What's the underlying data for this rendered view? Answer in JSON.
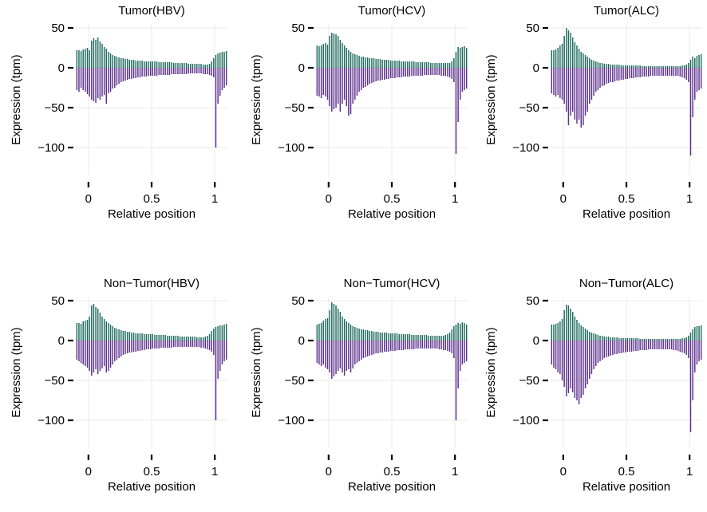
{
  "colors": {
    "positive": "#1e6b5e",
    "negative": "#5c2f8c",
    "grid": "#ebebeb"
  },
  "chart_data": [
    {
      "type": "bar",
      "title": "Tumor(HBV)",
      "xlabel": "Relative position",
      "ylabel": "Expression (tpm)",
      "xticks": [
        0,
        0.5,
        1
      ],
      "xtick_labels": [
        "0",
        "0.5",
        "1"
      ],
      "yticks": [
        50,
        0,
        -50,
        -100
      ],
      "ytick_labels": [
        "50",
        "0",
        "−50",
        "−100"
      ],
      "xlim": [
        -0.1,
        1.1
      ],
      "ylim": [
        -135,
        55
      ],
      "grid": true,
      "x_range": [
        -0.1,
        1.1
      ],
      "series": [
        {
          "values": [
            22,
            22,
            21,
            23,
            24,
            25,
            22,
            34,
            37,
            35,
            38,
            33,
            30,
            26,
            24,
            20,
            18,
            16,
            15,
            14,
            13,
            12,
            12,
            11,
            11,
            10,
            10,
            10,
            9,
            9,
            9,
            9,
            8,
            8,
            8,
            8,
            8,
            8,
            8,
            7,
            7,
            7,
            7,
            7,
            7,
            7,
            6,
            6,
            6,
            6,
            6,
            6,
            6,
            5,
            5,
            5,
            5,
            5,
            5,
            5,
            4,
            4,
            4,
            5,
            8,
            12,
            16,
            18,
            19,
            20,
            20,
            21
          ]
        },
        {
          "values": [
            -28,
            -30,
            -25,
            -28,
            -30,
            -33,
            -36,
            -40,
            -42,
            -44,
            -38,
            -40,
            -36,
            -34,
            -45,
            -32,
            -30,
            -26,
            -25,
            -22,
            -20,
            -18,
            -17,
            -16,
            -15,
            -14,
            -14,
            -13,
            -13,
            -12,
            -12,
            -11,
            -11,
            -11,
            -10,
            -10,
            -10,
            -10,
            -10,
            -9,
            -9,
            -9,
            -9,
            -9,
            -9,
            -8,
            -8,
            -8,
            -8,
            -8,
            -8,
            -8,
            -8,
            -7,
            -7,
            -7,
            -7,
            -7,
            -7,
            -7,
            -8,
            -8,
            -8,
            -9,
            -10,
            -12,
            -100,
            -45,
            -35,
            -28,
            -25,
            -22
          ]
        }
      ]
    },
    {
      "type": "bar",
      "title": "Tumor(HCV)",
      "xlabel": "Relative position",
      "ylabel": "Expression (tpm)",
      "xticks": [
        0,
        0.5,
        1
      ],
      "xtick_labels": [
        "0",
        "0.5",
        "1"
      ],
      "yticks": [
        50,
        0,
        -50,
        -100
      ],
      "ytick_labels": [
        "50",
        "0",
        "−50",
        "−100"
      ],
      "xlim": [
        -0.1,
        1.1
      ],
      "ylim": [
        -135,
        55
      ],
      "grid": true,
      "x_range": [
        -0.1,
        1.1
      ],
      "series": [
        {
          "values": [
            28,
            27,
            28,
            30,
            31,
            29,
            40,
            44,
            43,
            42,
            40,
            35,
            31,
            28,
            25,
            22,
            20,
            18,
            17,
            16,
            15,
            14,
            14,
            13,
            13,
            12,
            12,
            12,
            11,
            11,
            11,
            10,
            10,
            10,
            10,
            9,
            9,
            9,
            9,
            9,
            8,
            8,
            8,
            8,
            8,
            8,
            8,
            7,
            7,
            7,
            7,
            7,
            7,
            7,
            6,
            6,
            6,
            6,
            6,
            6,
            6,
            6,
            6,
            6,
            8,
            12,
            20,
            26,
            25,
            26,
            27,
            25
          ]
        },
        {
          "values": [
            -35,
            -36,
            -38,
            -34,
            -36,
            -40,
            -48,
            -55,
            -52,
            -50,
            -45,
            -55,
            -45,
            -40,
            -48,
            -60,
            -58,
            -45,
            -40,
            -35,
            -30,
            -28,
            -25,
            -24,
            -22,
            -20,
            -19,
            -18,
            -17,
            -16,
            -16,
            -15,
            -15,
            -14,
            -14,
            -13,
            -13,
            -13,
            -12,
            -12,
            -12,
            -11,
            -11,
            -11,
            -11,
            -10,
            -10,
            -10,
            -10,
            -10,
            -10,
            -9,
            -9,
            -9,
            -9,
            -9,
            -9,
            -9,
            -9,
            -10,
            -10,
            -10,
            -11,
            -12,
            -14,
            -18,
            -108,
            -68,
            -40,
            -30,
            -28,
            -26
          ]
        }
      ]
    },
    {
      "type": "bar",
      "title": "Tumor(ALC)",
      "xlabel": "Relative position",
      "ylabel": "Expression (tpm)",
      "xticks": [
        0,
        0.5,
        1
      ],
      "xtick_labels": [
        "0",
        "0.5",
        "1"
      ],
      "yticks": [
        50,
        0,
        -50,
        -100
      ],
      "ytick_labels": [
        "50",
        "0",
        "−50",
        "−100"
      ],
      "xlim": [
        -0.1,
        1.1
      ],
      "ylim": [
        -135,
        55
      ],
      "grid": true,
      "x_range": [
        -0.1,
        1.1
      ],
      "series": [
        {
          "values": [
            22,
            22,
            23,
            25,
            28,
            30,
            40,
            50,
            47,
            44,
            38,
            32,
            28,
            24,
            20,
            18,
            16,
            14,
            12,
            10,
            9,
            8,
            7,
            6,
            6,
            5,
            5,
            5,
            4,
            4,
            4,
            4,
            4,
            3,
            3,
            3,
            3,
            3,
            3,
            3,
            3,
            3,
            3,
            2,
            2,
            2,
            2,
            2,
            2,
            2,
            2,
            2,
            2,
            2,
            2,
            2,
            2,
            2,
            2,
            2,
            2,
            2,
            3,
            3,
            4,
            6,
            10,
            14,
            12,
            15,
            16,
            17
          ]
        },
        {
          "values": [
            -32,
            -34,
            -36,
            -34,
            -38,
            -40,
            -45,
            -55,
            -72,
            -60,
            -55,
            -65,
            -70,
            -65,
            -75,
            -72,
            -60,
            -55,
            -45,
            -40,
            -35,
            -30,
            -28,
            -25,
            -23,
            -22,
            -20,
            -19,
            -18,
            -18,
            -17,
            -16,
            -16,
            -15,
            -15,
            -14,
            -14,
            -13,
            -13,
            -13,
            -12,
            -12,
            -12,
            -11,
            -11,
            -11,
            -11,
            -10,
            -10,
            -10,
            -10,
            -10,
            -10,
            -10,
            -10,
            -10,
            -10,
            -10,
            -10,
            -10,
            -10,
            -11,
            -12,
            -13,
            -15,
            -18,
            -110,
            -62,
            -40,
            -30,
            -28,
            -26
          ]
        }
      ]
    },
    {
      "type": "bar",
      "title": "Non−Tumor(HBV)",
      "xlabel": "Relative position",
      "ylabel": "Expression (tpm)",
      "xticks": [
        0,
        0.5,
        1
      ],
      "xtick_labels": [
        "0",
        "0.5",
        "1"
      ],
      "yticks": [
        50,
        0,
        -50,
        -100
      ],
      "ytick_labels": [
        "50",
        "0",
        "−50",
        "−100"
      ],
      "xlim": [
        -0.1,
        1.1
      ],
      "ylim": [
        -135,
        55
      ],
      "grid": true,
      "x_range": [
        -0.1,
        1.1
      ],
      "series": [
        {
          "values": [
            22,
            22,
            21,
            24,
            25,
            26,
            30,
            44,
            46,
            42,
            40,
            35,
            30,
            27,
            24,
            22,
            20,
            18,
            16,
            15,
            14,
            13,
            12,
            12,
            11,
            11,
            10,
            10,
            9,
            9,
            9,
            9,
            8,
            8,
            8,
            8,
            8,
            7,
            7,
            7,
            7,
            7,
            7,
            6,
            6,
            6,
            6,
            6,
            6,
            5,
            5,
            5,
            5,
            5,
            5,
            5,
            5,
            4,
            4,
            4,
            4,
            5,
            6,
            8,
            12,
            15,
            17,
            18,
            19,
            19,
            20,
            21
          ]
        },
        {
          "values": [
            -24,
            -26,
            -28,
            -30,
            -32,
            -34,
            -38,
            -44,
            -40,
            -36,
            -42,
            -38,
            -35,
            -32,
            -40,
            -38,
            -34,
            -30,
            -26,
            -24,
            -22,
            -20,
            -18,
            -17,
            -16,
            -15,
            -15,
            -14,
            -14,
            -13,
            -13,
            -12,
            -12,
            -11,
            -11,
            -11,
            -10,
            -10,
            -10,
            -10,
            -9,
            -9,
            -9,
            -9,
            -9,
            -9,
            -8,
            -8,
            -8,
            -8,
            -8,
            -8,
            -8,
            -8,
            -8,
            -8,
            -8,
            -8,
            -8,
            -9,
            -9,
            -10,
            -11,
            -12,
            -14,
            -18,
            -100,
            -48,
            -38,
            -30,
            -26,
            -24
          ]
        }
      ]
    },
    {
      "type": "bar",
      "title": "Non−Tumor(HCV)",
      "xlabel": "Relative position",
      "ylabel": "Expression (tpm)",
      "xticks": [
        0,
        0.5,
        1
      ],
      "xtick_labels": [
        "0",
        "0.5",
        "1"
      ],
      "yticks": [
        50,
        0,
        -50,
        -100
      ],
      "ytick_labels": [
        "50",
        "0",
        "−50",
        "−100"
      ],
      "xlim": [
        -0.1,
        1.1
      ],
      "ylim": [
        -135,
        55
      ],
      "grid": true,
      "x_range": [
        -0.1,
        1.1
      ],
      "series": [
        {
          "values": [
            20,
            21,
            22,
            25,
            27,
            28,
            38,
            48,
            46,
            44,
            40,
            36,
            30,
            27,
            24,
            22,
            20,
            18,
            17,
            16,
            15,
            14,
            14,
            13,
            13,
            12,
            12,
            11,
            11,
            11,
            10,
            10,
            10,
            10,
            9,
            9,
            9,
            9,
            9,
            8,
            8,
            8,
            8,
            8,
            8,
            7,
            7,
            7,
            7,
            7,
            7,
            7,
            7,
            6,
            6,
            6,
            6,
            6,
            6,
            6,
            6,
            7,
            8,
            10,
            14,
            18,
            20,
            22,
            21,
            23,
            22,
            20
          ]
        },
        {
          "values": [
            -28,
            -30,
            -32,
            -30,
            -34,
            -36,
            -40,
            -48,
            -45,
            -42,
            -38,
            -35,
            -40,
            -44,
            -38,
            -36,
            -40,
            -35,
            -30,
            -28,
            -26,
            -24,
            -22,
            -21,
            -20,
            -19,
            -18,
            -17,
            -16,
            -16,
            -15,
            -15,
            -14,
            -14,
            -14,
            -13,
            -13,
            -13,
            -12,
            -12,
            -12,
            -12,
            -11,
            -11,
            -11,
            -11,
            -11,
            -10,
            -10,
            -10,
            -10,
            -10,
            -10,
            -10,
            -10,
            -10,
            -10,
            -10,
            -11,
            -11,
            -12,
            -12,
            -13,
            -14,
            -16,
            -22,
            -100,
            -60,
            -38,
            -30,
            -28,
            -26
          ]
        }
      ]
    },
    {
      "type": "bar",
      "title": "Non−Tumor(ALC)",
      "xlabel": "Relative position",
      "ylabel": "Expression (tpm)",
      "xticks": [
        0,
        0.5,
        1
      ],
      "xtick_labels": [
        "0",
        "0.5",
        "1"
      ],
      "yticks": [
        50,
        0,
        -50,
        -100
      ],
      "ytick_labels": [
        "50",
        "0",
        "−50",
        "−100"
      ],
      "xlim": [
        -0.1,
        1.1
      ],
      "ylim": [
        -135,
        55
      ],
      "grid": true,
      "x_range": [
        -0.1,
        1.1
      ],
      "series": [
        {
          "values": [
            20,
            20,
            21,
            22,
            24,
            27,
            38,
            45,
            44,
            40,
            36,
            30,
            26,
            22,
            19,
            17,
            15,
            13,
            11,
            10,
            9,
            8,
            7,
            6,
            6,
            5,
            5,
            5,
            4,
            4,
            4,
            4,
            3,
            3,
            3,
            3,
            3,
            3,
            3,
            3,
            3,
            3,
            2,
            2,
            2,
            2,
            2,
            2,
            2,
            2,
            2,
            2,
            2,
            2,
            2,
            2,
            2,
            2,
            2,
            2,
            2,
            2,
            3,
            3,
            4,
            6,
            10,
            14,
            17,
            18,
            18,
            19
          ]
        },
        {
          "values": [
            -30,
            -34,
            -36,
            -40,
            -42,
            -50,
            -58,
            -70,
            -66,
            -60,
            -65,
            -72,
            -75,
            -80,
            -72,
            -68,
            -60,
            -55,
            -48,
            -42,
            -36,
            -32,
            -28,
            -26,
            -24,
            -22,
            -21,
            -20,
            -19,
            -18,
            -17,
            -17,
            -16,
            -16,
            -15,
            -15,
            -14,
            -14,
            -14,
            -13,
            -13,
            -13,
            -12,
            -12,
            -12,
            -12,
            -11,
            -11,
            -11,
            -11,
            -11,
            -11,
            -11,
            -11,
            -11,
            -11,
            -11,
            -11,
            -12,
            -12,
            -13,
            -14,
            -15,
            -16,
            -18,
            -22,
            -115,
            -75,
            -40,
            -30,
            -26,
            -24
          ]
        }
      ]
    }
  ]
}
